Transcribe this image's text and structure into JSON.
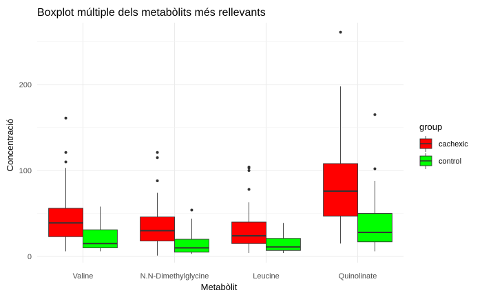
{
  "chart_data": {
    "type": "boxplot",
    "title": "Boxplot múltiple dels metabòlits més rellevants",
    "xlabel": "Metabòlit",
    "ylabel": "Concentració",
    "ylim": [
      -8,
      262
    ],
    "yticks": [
      0,
      100,
      200
    ],
    "grid": true,
    "legend": {
      "title": "group",
      "position": "right",
      "entries": [
        "cachexic",
        "control"
      ]
    },
    "categories": [
      "Valine",
      "N.N-Dimethylglycine",
      "Leucine",
      "Quinolinate"
    ],
    "series": [
      {
        "name": "cachexic",
        "color": "#ff0000",
        "boxes": [
          {
            "min": 6,
            "q1": 23,
            "median": 39,
            "q3": 56,
            "max": 103,
            "outliers": [
              110,
              121,
              161
            ]
          },
          {
            "min": 1,
            "q1": 18,
            "median": 30,
            "q3": 46,
            "max": 74,
            "outliers": [
              88,
              115,
              121
            ]
          },
          {
            "min": 4,
            "q1": 15,
            "median": 24,
            "q3": 40,
            "max": 63,
            "outliers": [
              78,
              100,
              103,
              104
            ]
          },
          {
            "min": 15,
            "q1": 47,
            "median": 76,
            "q3": 108,
            "max": 198,
            "outliers": [
              261
            ]
          }
        ]
      },
      {
        "name": "control",
        "color": "#00ff00",
        "boxes": [
          {
            "min": 6,
            "q1": 10,
            "median": 15,
            "q3": 31,
            "max": 58,
            "outliers": []
          },
          {
            "min": 3,
            "q1": 5,
            "median": 10,
            "q3": 20,
            "max": 44,
            "outliers": [
              54
            ]
          },
          {
            "min": 4,
            "q1": 7,
            "median": 11,
            "q3": 21,
            "max": 39,
            "outliers": []
          },
          {
            "min": 6,
            "q1": 17,
            "median": 28,
            "q3": 50,
            "max": 88,
            "outliers": [
              102,
              165
            ]
          }
        ]
      }
    ]
  }
}
